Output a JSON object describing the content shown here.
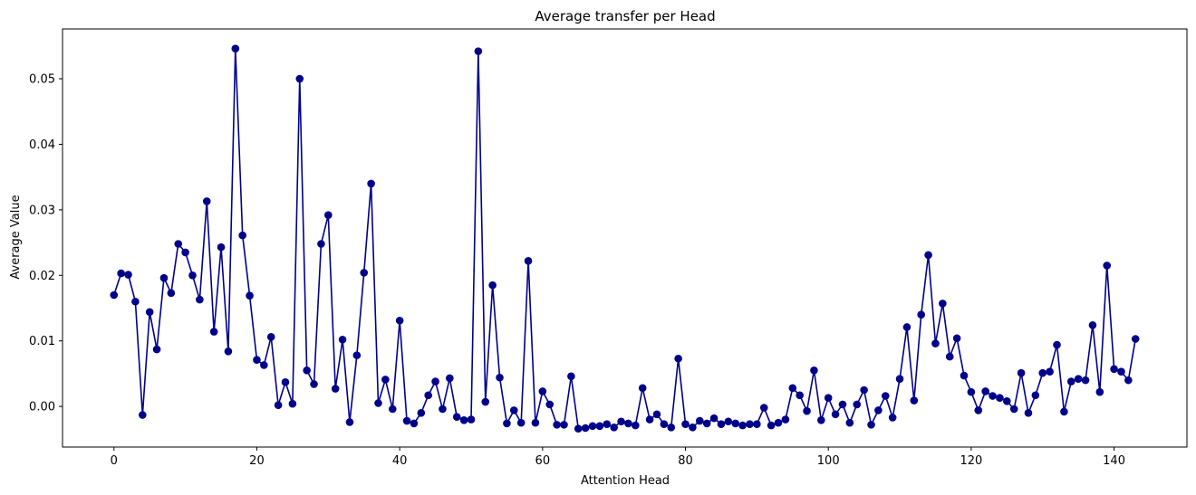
{
  "chart_data": {
    "type": "line",
    "title": "Average transfer per Head",
    "xlabel": "Attention Head",
    "ylabel": "Average Value",
    "xlim": [
      -7.2,
      150.2
    ],
    "ylim": [
      -0.0062,
      0.0576
    ],
    "xticks": [
      0,
      20,
      40,
      60,
      80,
      100,
      120,
      140
    ],
    "yticks": [
      0.0,
      0.01,
      0.02,
      0.03,
      0.04,
      0.05
    ],
    "ytick_labels": [
      "0.00",
      "0.01",
      "0.02",
      "0.03",
      "0.04",
      "0.05"
    ],
    "grid": false,
    "marker": "circle",
    "line_color": "#00008b",
    "series": [
      {
        "values": [
          0.017,
          0.0203,
          0.0201,
          0.016,
          -0.0013,
          0.0144,
          0.0087,
          0.0196,
          0.0173,
          0.0248,
          0.0235,
          0.02,
          0.0163,
          0.0313,
          0.0114,
          0.0243,
          0.0084,
          0.0546,
          0.0261,
          0.0169,
          0.0071,
          0.0063,
          0.0106,
          0.0002,
          0.0037,
          0.0004,
          0.05,
          0.0055,
          0.0034,
          0.0248,
          0.0292,
          0.0027,
          0.0102,
          -0.0024,
          0.0078,
          0.0204,
          0.034,
          0.0005,
          0.0041,
          -0.0004,
          0.0131,
          -0.0022,
          -0.0026,
          -0.001,
          0.0017,
          0.0038,
          -0.0004,
          0.0043,
          -0.0016,
          -0.0021,
          -0.002,
          0.0542,
          0.0007,
          0.0185,
          0.0044,
          -0.0026,
          -0.0006,
          -0.0025,
          0.0222,
          -0.0025,
          0.0023,
          0.0003,
          -0.0028,
          -0.0028,
          0.0046,
          -0.0034,
          -0.0033,
          -0.003,
          -0.003,
          -0.0027,
          -0.0032,
          -0.0023,
          -0.0026,
          -0.0029,
          0.0028,
          -0.002,
          -0.0012,
          -0.0027,
          -0.0032,
          0.0073,
          -0.0027,
          -0.0032,
          -0.0022,
          -0.0026,
          -0.0018,
          -0.0027,
          -0.0023,
          -0.0026,
          -0.0029,
          -0.0027,
          -0.0027,
          -0.0002,
          -0.0029,
          -0.0025,
          -0.002,
          0.0028,
          0.0017,
          -0.0007,
          0.0055,
          -0.0021,
          0.0013,
          -0.0012,
          0.0003,
          -0.0025,
          0.0003,
          0.0025,
          -0.0028,
          -0.0006,
          0.0016,
          -0.0017,
          0.0042,
          0.0121,
          0.0009,
          0.014,
          0.0231,
          0.0096,
          0.0157,
          0.0076,
          0.0104,
          0.0047,
          0.0022,
          -0.0006,
          0.0023,
          0.0016,
          0.0013,
          0.0008,
          -0.0004,
          0.0051,
          -0.001,
          0.0017,
          0.0051,
          0.0053,
          0.0094,
          -0.0008,
          0.0038,
          0.0042,
          0.004,
          0.0124,
          0.0022,
          0.0215,
          0.0057,
          0.0053,
          0.004,
          0.0103
        ]
      }
    ]
  }
}
